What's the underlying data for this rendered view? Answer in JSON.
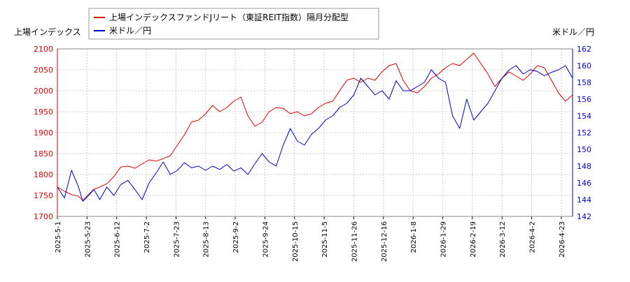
{
  "chart_data": {
    "type": "line",
    "legend": [
      {
        "label": "上場インデックスファンドJリート（東証REIT指数）隔月分配型",
        "color": "#dd0000"
      },
      {
        "label": "米ドル／円",
        "color": "#0000cc"
      }
    ],
    "left_axis": {
      "label": "上場インデックス",
      "range": [
        1700,
        2100
      ],
      "ticks": [
        "1700",
        "1750",
        "1800",
        "1850",
        "1900",
        "1950",
        "2000",
        "2050",
        "2100"
      ],
      "color": "#dd0000"
    },
    "right_axis": {
      "label": "米ドル／円",
      "range": [
        142,
        162
      ],
      "ticks": [
        "142",
        "144",
        "146",
        "148",
        "150",
        "152",
        "154",
        "156",
        "158",
        "160",
        "162"
      ],
      "color": "#0000cc"
    },
    "x_ticks": [
      "2025-5-1",
      "2025-5-23",
      "2025-6-12",
      "2025-7-2",
      "2025-7-23",
      "2025-8-13",
      "2025-9-2",
      "2025-9-24",
      "2025-10-15",
      "2025-11-5",
      "2025-11-26",
      "2025-12-16",
      "2026-1-8",
      "2026-1-29",
      "2026-2-19",
      "2026-3-12",
      "2026-4-2",
      "2026-4-23"
    ],
    "grid": true,
    "series": [
      {
        "name": "上場インデックスファンドJリート（東証REIT指数）隔月分配型",
        "axis": "left",
        "color": "#dd0000",
        "x": [
          0,
          5,
          10,
          15,
          18,
          22,
          26,
          30,
          35,
          40,
          45,
          50,
          55,
          60,
          65,
          70,
          75,
          80,
          85,
          90,
          95,
          100,
          105,
          110,
          115,
          120,
          125,
          130,
          135,
          140,
          145,
          150,
          155,
          160,
          165,
          170,
          175,
          180,
          185,
          190,
          195,
          200,
          205,
          210,
          215,
          220,
          225,
          230,
          235,
          240,
          245,
          250,
          255,
          260,
          265,
          270,
          275,
          280,
          285,
          290,
          295,
          300,
          305,
          310,
          315,
          320,
          325,
          330,
          335,
          340,
          345,
          350,
          355,
          360,
          365
        ],
        "values": [
          1770,
          1760,
          1752,
          1748,
          1738,
          1752,
          1765,
          1770,
          1778,
          1795,
          1818,
          1820,
          1815,
          1825,
          1835,
          1832,
          1838,
          1845,
          1870,
          1895,
          1925,
          1930,
          1945,
          1965,
          1950,
          1960,
          1975,
          1985,
          1940,
          1915,
          1925,
          1950,
          1960,
          1958,
          1945,
          1950,
          1940,
          1945,
          1960,
          1970,
          1975,
          2000,
          2025,
          2030,
          2020,
          2030,
          2025,
          2045,
          2060,
          2065,
          2025,
          2000,
          1995,
          2010,
          2030,
          2040,
          2055,
          2065,
          2060,
          2075,
          2090,
          2065,
          2040,
          2010,
          2030,
          2045,
          2035,
          2025,
          2040,
          2060,
          2055,
          2025,
          1995,
          1975,
          1990
        ]
      },
      {
        "name": "米ドル／円",
        "axis": "right",
        "color": "#0000cc",
        "x": [
          0,
          5,
          10,
          15,
          18,
          22,
          26,
          30,
          35,
          40,
          45,
          50,
          55,
          60,
          65,
          70,
          75,
          80,
          85,
          90,
          95,
          100,
          105,
          110,
          115,
          120,
          125,
          130,
          135,
          140,
          145,
          150,
          155,
          160,
          165,
          170,
          175,
          180,
          185,
          190,
          195,
          200,
          205,
          210,
          215,
          220,
          225,
          230,
          235,
          240,
          245,
          250,
          255,
          260,
          265,
          270,
          275,
          280,
          285,
          290,
          295,
          300,
          305,
          310,
          315,
          320,
          325,
          330,
          335,
          340,
          345,
          350,
          355,
          360,
          365
        ],
        "values": [
          145.5,
          144.2,
          147.5,
          145.5,
          143.8,
          144.5,
          145.2,
          144.0,
          145.5,
          144.5,
          145.8,
          146.3,
          145.2,
          144.0,
          146.0,
          147.2,
          148.5,
          147.0,
          147.5,
          148.4,
          147.8,
          148.0,
          147.5,
          148.0,
          147.6,
          148.2,
          147.4,
          147.8,
          147.0,
          148.3,
          149.5,
          148.5,
          148.0,
          150.5,
          152.5,
          151.0,
          150.5,
          151.8,
          152.5,
          153.5,
          154.0,
          155.0,
          155.5,
          156.5,
          158.5,
          157.5,
          156.5,
          157.0,
          156.0,
          158.2,
          157.0,
          157.0,
          157.5,
          158.0,
          159.5,
          158.5,
          158.0,
          154.0,
          152.5,
          156.0,
          153.5,
          154.5,
          155.5,
          157.0,
          158.5,
          159.5,
          160.0,
          159.0,
          159.5,
          159.3,
          158.8,
          159.2,
          159.5,
          160.0,
          158.5
        ]
      }
    ]
  }
}
